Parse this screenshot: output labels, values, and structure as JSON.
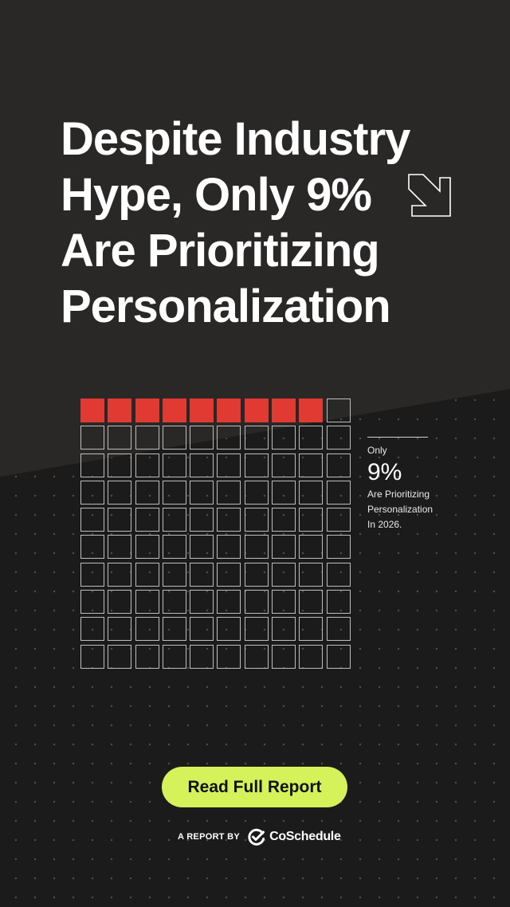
{
  "headline": "Despite Industry Hype, Only 9% Are Prioritizing Personalization",
  "icons": {
    "arrow": "arrow-down-right-icon",
    "brand": "coschedule-check-logo-icon"
  },
  "colors": {
    "background": "#1c1b1b",
    "top_band": "#2a2827",
    "filled": "#e03a33",
    "cta": "#d6f25a",
    "outline": "#bdbdbd"
  },
  "chart_data": {
    "type": "waffle",
    "total": 100,
    "highlighted": 9,
    "rows": 10,
    "columns": 10
  },
  "stat": {
    "prefix": "Only",
    "value": "9%",
    "line1": "Are Prioritizing",
    "line2": "Personalization",
    "line3": "In 2026."
  },
  "cta": {
    "label": "Read Full Report"
  },
  "credit": {
    "prefix": "A REPORT BY",
    "brand": "CoSchedule"
  }
}
